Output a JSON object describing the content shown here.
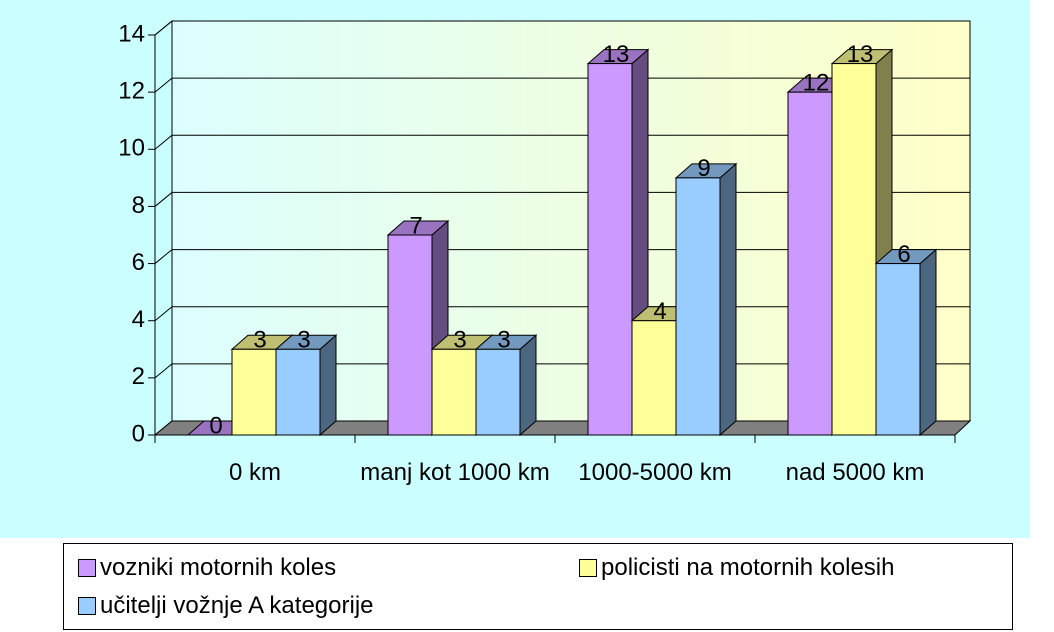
{
  "chart_data": {
    "type": "bar3d",
    "categories": [
      "0 km",
      "manj kot 1000 km",
      "1000-5000 km",
      "nad 5000 km"
    ],
    "series": [
      {
        "name": "vozniki motornih koles",
        "color": "#cc99ff",
        "values": [
          0,
          7,
          13,
          12
        ]
      },
      {
        "name": "policisti na motornih kolesih",
        "color": "#ffff99",
        "values": [
          3,
          3,
          4,
          13
        ]
      },
      {
        "name": "učitelji vožnje A kategorije",
        "color": "#99ccff",
        "values": [
          3,
          3,
          9,
          6
        ]
      }
    ],
    "ylim": [
      0,
      14
    ],
    "yticks": [
      0,
      2,
      4,
      6,
      8,
      10,
      12,
      14
    ],
    "grid": true
  }
}
